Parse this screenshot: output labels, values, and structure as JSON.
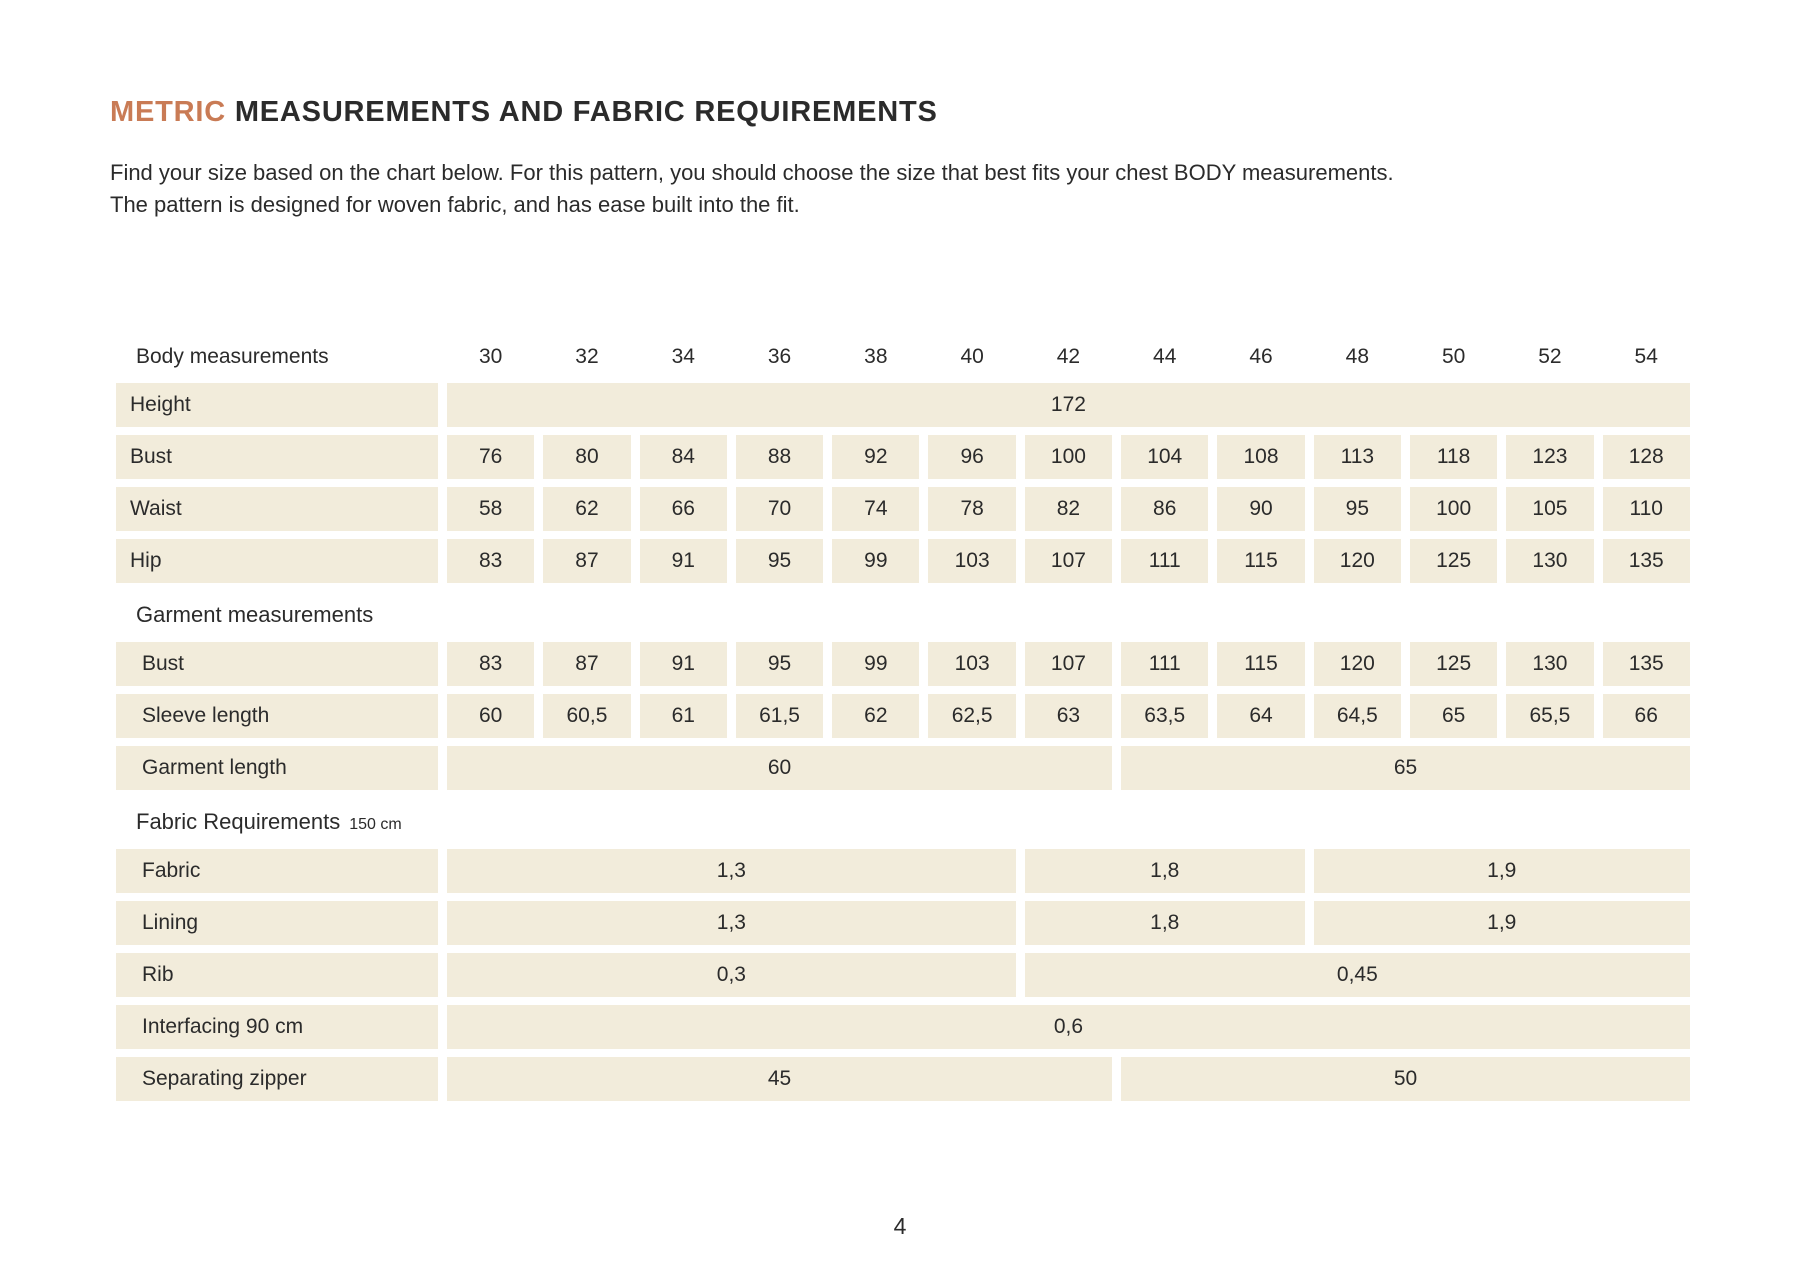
{
  "colors": {
    "accent": "#C97B55",
    "cell_bg": "#F2ECDB",
    "text": "#2B2B2B",
    "page_bg": "#FFFFFF"
  },
  "header": {
    "title_accent": "METRIC",
    "title_rest": "MEASUREMENTS AND FABRIC REQUIREMENTS",
    "intro_line1": "Find your size based on the chart below. For this pattern, you should choose the size that best fits your chest BODY measurements.",
    "intro_line2": "The pattern is designed for woven fabric, and has ease built into the fit."
  },
  "table": {
    "header": {
      "label": "Body measurements",
      "sizes": [
        "30",
        "32",
        "34",
        "36",
        "38",
        "40",
        "42",
        "44",
        "46",
        "48",
        "50",
        "52",
        "54"
      ]
    },
    "rows": [
      {
        "type": "row",
        "label": "Height",
        "cells": [
          {
            "v": "172",
            "span": 13
          }
        ]
      },
      {
        "type": "row",
        "label": "Bust",
        "cells": [
          {
            "v": "76"
          },
          {
            "v": "80"
          },
          {
            "v": "84"
          },
          {
            "v": "88"
          },
          {
            "v": "92"
          },
          {
            "v": "96"
          },
          {
            "v": "100"
          },
          {
            "v": "104"
          },
          {
            "v": "108"
          },
          {
            "v": "113"
          },
          {
            "v": "118"
          },
          {
            "v": "123"
          },
          {
            "v": "128"
          }
        ]
      },
      {
        "type": "row",
        "label": "Waist",
        "cells": [
          {
            "v": "58"
          },
          {
            "v": "62"
          },
          {
            "v": "66"
          },
          {
            "v": "70"
          },
          {
            "v": "74"
          },
          {
            "v": "78"
          },
          {
            "v": "82"
          },
          {
            "v": "86"
          },
          {
            "v": "90"
          },
          {
            "v": "95"
          },
          {
            "v": "100"
          },
          {
            "v": "105"
          },
          {
            "v": "110"
          }
        ]
      },
      {
        "type": "row",
        "label": "Hip",
        "cells": [
          {
            "v": "83"
          },
          {
            "v": "87"
          },
          {
            "v": "91"
          },
          {
            "v": "95"
          },
          {
            "v": "99"
          },
          {
            "v": "103"
          },
          {
            "v": "107"
          },
          {
            "v": "111"
          },
          {
            "v": "115"
          },
          {
            "v": "120"
          },
          {
            "v": "125"
          },
          {
            "v": "130"
          },
          {
            "v": "135"
          }
        ]
      },
      {
        "type": "section",
        "label": "Garment measurements"
      },
      {
        "type": "row",
        "label": "Bust",
        "cells": [
          {
            "v": "83"
          },
          {
            "v": "87"
          },
          {
            "v": "91"
          },
          {
            "v": "95"
          },
          {
            "v": "99"
          },
          {
            "v": "103"
          },
          {
            "v": "107"
          },
          {
            "v": "111"
          },
          {
            "v": "115"
          },
          {
            "v": "120"
          },
          {
            "v": "125"
          },
          {
            "v": "130"
          },
          {
            "v": "135"
          }
        ]
      },
      {
        "type": "row",
        "label": "Sleeve length",
        "cells": [
          {
            "v": "60"
          },
          {
            "v": "60,5"
          },
          {
            "v": "61"
          },
          {
            "v": "61,5"
          },
          {
            "v": "62"
          },
          {
            "v": "62,5"
          },
          {
            "v": "63"
          },
          {
            "v": "63,5"
          },
          {
            "v": "64"
          },
          {
            "v": "64,5"
          },
          {
            "v": "65"
          },
          {
            "v": "65,5"
          },
          {
            "v": "66"
          }
        ]
      },
      {
        "type": "row",
        "label": "Garment length",
        "cells": [
          {
            "v": "60",
            "span": 7
          },
          {
            "v": "65",
            "span": 6
          }
        ]
      },
      {
        "type": "section",
        "label": "Fabric Requirements",
        "suffix": "150 cm"
      },
      {
        "type": "row",
        "label": "Fabric",
        "cells": [
          {
            "v": "1,3",
            "span": 6
          },
          {
            "v": "1,8",
            "span": 3
          },
          {
            "v": "1,9",
            "span": 4
          }
        ]
      },
      {
        "type": "row",
        "label": "Lining",
        "cells": [
          {
            "v": "1,3",
            "span": 6
          },
          {
            "v": "1,8",
            "span": 3
          },
          {
            "v": "1,9",
            "span": 4
          }
        ]
      },
      {
        "type": "row",
        "label": "Rib",
        "cells": [
          {
            "v": "0,3",
            "span": 6
          },
          {
            "v": "0,45",
            "span": 7
          }
        ]
      },
      {
        "type": "row",
        "label": "Interfacing 90 cm",
        "cells": [
          {
            "v": "0,6",
            "span": 13
          }
        ]
      },
      {
        "type": "row",
        "label": "Separating zipper",
        "cells": [
          {
            "v": "45",
            "span": 7
          },
          {
            "v": "50",
            "span": 6
          }
        ]
      }
    ]
  },
  "footer": {
    "page_number": "4"
  }
}
